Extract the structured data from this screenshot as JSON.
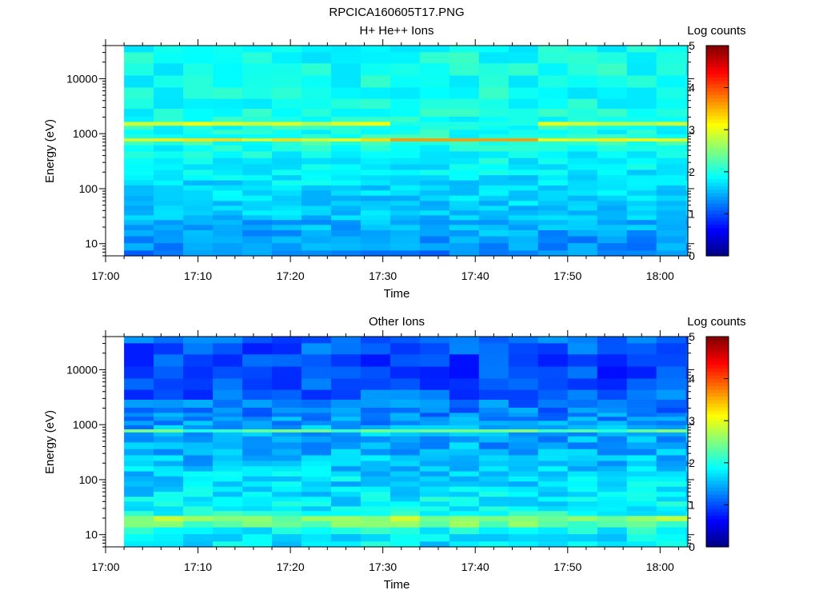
{
  "figure_title": "RPCICA160605T17.PNG",
  "chart_data": [
    {
      "type": "heatmap",
      "title": "H+ He++ Ions",
      "xlabel": "Time",
      "ylabel": "Energy (eV)",
      "x_range": [
        "17:00",
        "18:03"
      ],
      "x_ticks": [
        "17:00",
        "17:10",
        "17:20",
        "17:30",
        "17:40",
        "17:50",
        "18:00"
      ],
      "y_scale": "log",
      "y_range": [
        6,
        40000
      ],
      "y_ticks": [
        "10",
        "100",
        "1000",
        "10000"
      ],
      "colorbar": {
        "label": "Log counts",
        "min": 0,
        "max": 5,
        "ticks": [
          "0",
          "1",
          "2",
          "3",
          "4",
          "5"
        ]
      },
      "data_start": "17:02",
      "time_bin_minutes": 3.2,
      "energy_levels_eV": [
        6.5,
        9,
        12,
        16,
        20,
        25,
        30,
        37,
        45,
        55,
        68,
        85,
        105,
        130,
        160,
        200,
        250,
        320,
        420,
        560,
        700,
        780,
        900,
        1100,
        1300,
        1550,
        1800,
        2400,
        3500,
        5500,
        9000,
        15000,
        25000,
        38000
      ],
      "profile_log_counts": [
        1.3,
        1.35,
        1.4,
        1.45,
        1.5,
        1.5,
        1.55,
        1.6,
        1.6,
        1.65,
        1.65,
        1.7,
        1.7,
        1.75,
        1.75,
        1.8,
        1.8,
        1.85,
        1.9,
        1.95,
        2.05,
        3.1,
        2.0,
        1.95,
        2.0,
        2.95,
        2.0,
        1.95,
        1.95,
        1.95,
        1.95,
        1.95,
        1.95,
        1.95
      ],
      "annotations": [
        {
          "energy_eV": 780,
          "log_counts": 3.1,
          "note": ""
        },
        {
          "energy_eV": 1550,
          "log_counts": 2.95,
          "note": ""
        },
        {
          "time_range": [
            "17:31",
            "17:47"
          ],
          "energy_eV": 800,
          "log_counts": 3.6,
          "note": ""
        }
      ]
    },
    {
      "type": "heatmap",
      "title": "Other Ions",
      "xlabel": "Time",
      "ylabel": "Energy (eV)",
      "x_range": [
        "17:00",
        "18:03"
      ],
      "x_ticks": [
        "17:00",
        "17:10",
        "17:20",
        "17:30",
        "17:40",
        "17:50",
        "18:00"
      ],
      "y_scale": "log",
      "y_range": [
        6,
        40000
      ],
      "y_ticks": [
        "10",
        "100",
        "1000",
        "10000"
      ],
      "colorbar": {
        "label": "Log counts",
        "min": 0,
        "max": 5,
        "ticks": [
          "0",
          "1",
          "2",
          "3",
          "4",
          "5"
        ]
      },
      "data_start": "17:02",
      "time_bin_minutes": 3.2,
      "energy_levels_eV": [
        6.5,
        9,
        12,
        16,
        20,
        25,
        30,
        37,
        45,
        55,
        68,
        85,
        105,
        130,
        160,
        200,
        250,
        320,
        420,
        560,
        700,
        780,
        900,
        1100,
        1300,
        1550,
        1800,
        2400,
        3500,
        5500,
        9000,
        15000,
        25000,
        38000
      ],
      "profile_log_counts": [
        1.8,
        1.85,
        1.9,
        2.4,
        2.6,
        1.95,
        1.85,
        1.8,
        1.8,
        1.75,
        1.75,
        1.7,
        1.7,
        1.65,
        1.6,
        1.55,
        1.55,
        1.5,
        1.45,
        1.45,
        1.5,
        2.3,
        1.45,
        1.4,
        1.35,
        1.3,
        1.25,
        1.2,
        1.1,
        1.0,
        0.95,
        1.0,
        1.05,
        1.1
      ]
    }
  ]
}
